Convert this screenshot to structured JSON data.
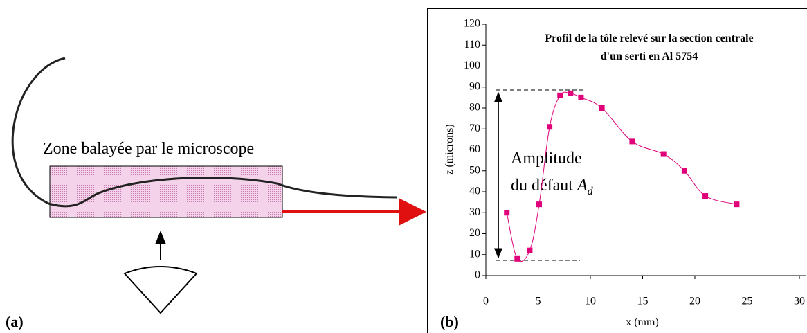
{
  "panel_a": {
    "label": "(a)",
    "zone_label": "Zone balayée par le microscope"
  },
  "panel_b": {
    "label": "(b)"
  },
  "chart_data": {
    "type": "line",
    "title": [
      "Profil de la tôle relevé sur la section centrale",
      "d'un serti en Al 5754"
    ],
    "x_label": "x (mm)",
    "y_label": "z (microns)",
    "annotation": {
      "line1": "Amplitude",
      "line2": "du défaut ",
      "symbol": "A",
      "subscript": "d"
    },
    "x": [
      2,
      3,
      4.2,
      5.1,
      6.1,
      7.1,
      8.1,
      9.1,
      11.1,
      14,
      17,
      19,
      21,
      24
    ],
    "series": [
      {
        "name": "z",
        "color": "#e0007a",
        "values": [
          30,
          8,
          12,
          34,
          71,
          86,
          87,
          85,
          80,
          64,
          58,
          50,
          38,
          34
        ]
      }
    ],
    "xlim": [
      0,
      30
    ],
    "xticks": [
      0,
      5,
      10,
      15,
      20,
      25,
      30
    ],
    "ylim": [
      0,
      120
    ],
    "yticks": [
      0,
      10,
      20,
      30,
      40,
      50,
      60,
      70,
      80,
      90,
      100,
      110,
      120
    ]
  }
}
